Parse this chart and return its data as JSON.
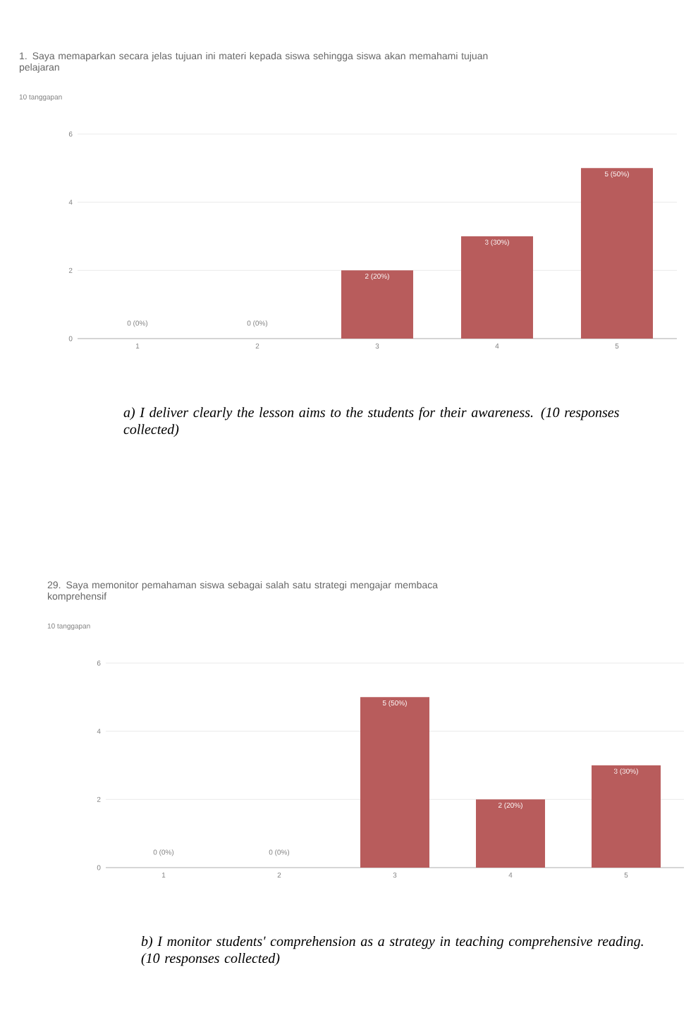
{
  "chart_data": [
    {
      "type": "bar",
      "title": "1. Saya memaparkan secara jelas tujuan ini materi kepada siswa sehingga siswa akan memahami tujuan pelajaran",
      "subtitle": "10 tanggapan",
      "categories": [
        "1",
        "2",
        "3",
        "4",
        "5"
      ],
      "values": [
        0,
        0,
        2,
        3,
        5
      ],
      "value_labels": [
        "0 (0%)",
        "0 (0%)",
        "2 (20%)",
        "3 (30%)",
        "5 (50%)"
      ],
      "color": "#b85c5c",
      "ylim": [
        0,
        6
      ],
      "yticks": [
        0,
        2,
        4,
        6
      ],
      "grid": "y",
      "annotations": [
        "a) I deliver clearly the lesson aims to the students for their awareness. (10 responses collected)"
      ]
    },
    {
      "type": "bar",
      "title": "29. Saya memonitor pemahaman siswa sebagai salah satu strategi mengajar membaca komprehensif",
      "subtitle": "10 tanggapan",
      "categories": [
        "1",
        "2",
        "3",
        "4",
        "5"
      ],
      "values": [
        0,
        0,
        5,
        2,
        3
      ],
      "value_labels": [
        "0 (0%)",
        "0 (0%)",
        "5 (50%)",
        "2 (20%)",
        "3 (30%)"
      ],
      "color": "#b85c5c",
      "ylim": [
        0,
        6
      ],
      "yticks": [
        0,
        2,
        4,
        6
      ],
      "grid": "y",
      "annotations": [
        "b) I monitor students' comprehension as a strategy in teaching comprehensive reading. (10 responses collected)"
      ]
    }
  ]
}
